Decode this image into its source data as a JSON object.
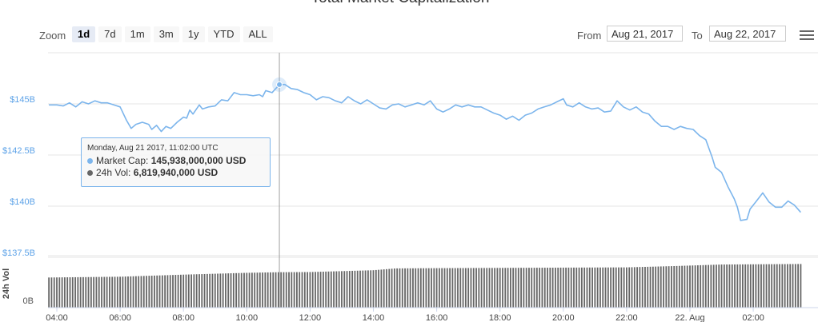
{
  "header": {
    "title": "Total Market Capitalization",
    "zoom_label": "Zoom",
    "zoom_buttons": [
      "1d",
      "7d",
      "1m",
      "3m",
      "1y",
      "YTD",
      "ALL"
    ],
    "active_zoom": "1d",
    "from_label": "From",
    "from_value": "Aug 21, 2017",
    "to_label": "To",
    "to_value": "Aug 22, 2017"
  },
  "tooltip": {
    "date": "Monday, Aug 21 2017, 11:02:00 UTC",
    "market_cap_label": "Market Cap:",
    "market_cap_value": "145,938,000,000 USD",
    "vol_label": "24h Vol:",
    "vol_value": "6,819,940,000 USD"
  },
  "chart_data": {
    "type": "line",
    "title": "Total Market Capitalization",
    "colors": {
      "market_cap": "#7cb5ec",
      "volume": "#666666",
      "crosshair": "#888888"
    },
    "x_tick_labels": [
      "04:00",
      "06:00",
      "08:00",
      "10:00",
      "12:00",
      "14:00",
      "16:00",
      "18:00",
      "20:00",
      "22:00",
      "22. Aug",
      "02:00"
    ],
    "x_tick_hours": [
      4,
      6,
      8,
      10,
      12,
      14,
      16,
      18,
      20,
      22,
      24,
      26
    ],
    "y_tick_labels": [
      "$137.5B",
      "$140B",
      "$142.5B",
      "$145B"
    ],
    "y_tick_values": [
      137.5,
      140,
      142.5,
      145
    ],
    "ylim": [
      137.5,
      147.5
    ],
    "volume_axis_label": "24h Vol",
    "volume_tick_label": "0B",
    "crosshair_hour": 11.03,
    "series": [
      {
        "name": "Market Cap",
        "unit": "B USD",
        "points": [
          [
            3.75,
            144.95
          ],
          [
            4.0,
            144.95
          ],
          [
            4.2,
            144.9
          ],
          [
            4.4,
            145.05
          ],
          [
            4.6,
            144.85
          ],
          [
            4.8,
            145.1
          ],
          [
            5.0,
            145.0
          ],
          [
            5.2,
            145.15
          ],
          [
            5.4,
            145.05
          ],
          [
            5.6,
            145.05
          ],
          [
            5.8,
            144.95
          ],
          [
            6.0,
            144.85
          ],
          [
            6.2,
            144.2
          ],
          [
            6.35,
            143.8
          ],
          [
            6.5,
            144.0
          ],
          [
            6.7,
            144.1
          ],
          [
            6.9,
            144.0
          ],
          [
            7.0,
            143.75
          ],
          [
            7.15,
            143.95
          ],
          [
            7.3,
            143.65
          ],
          [
            7.45,
            143.9
          ],
          [
            7.6,
            143.8
          ],
          [
            7.8,
            144.1
          ],
          [
            8.0,
            144.35
          ],
          [
            8.1,
            144.3
          ],
          [
            8.2,
            144.7
          ],
          [
            8.3,
            144.5
          ],
          [
            8.5,
            144.95
          ],
          [
            8.6,
            144.75
          ],
          [
            8.8,
            144.85
          ],
          [
            9.0,
            144.9
          ],
          [
            9.2,
            145.2
          ],
          [
            9.4,
            145.15
          ],
          [
            9.6,
            145.55
          ],
          [
            9.8,
            145.45
          ],
          [
            10.0,
            145.45
          ],
          [
            10.2,
            145.4
          ],
          [
            10.4,
            145.45
          ],
          [
            10.5,
            145.35
          ],
          [
            10.6,
            145.65
          ],
          [
            10.8,
            145.55
          ],
          [
            11.03,
            145.94
          ],
          [
            11.2,
            145.95
          ],
          [
            11.4,
            145.75
          ],
          [
            11.6,
            145.7
          ],
          [
            11.8,
            145.55
          ],
          [
            12.0,
            145.45
          ],
          [
            12.2,
            145.2
          ],
          [
            12.4,
            145.35
          ],
          [
            12.6,
            145.3
          ],
          [
            12.8,
            145.15
          ],
          [
            13.0,
            145.05
          ],
          [
            13.2,
            145.35
          ],
          [
            13.4,
            145.15
          ],
          [
            13.6,
            145.0
          ],
          [
            13.8,
            145.2
          ],
          [
            14.0,
            145.0
          ],
          [
            14.2,
            144.8
          ],
          [
            14.4,
            144.75
          ],
          [
            14.6,
            144.95
          ],
          [
            14.8,
            145.0
          ],
          [
            15.0,
            144.85
          ],
          [
            15.2,
            144.95
          ],
          [
            15.4,
            145.05
          ],
          [
            15.6,
            144.95
          ],
          [
            15.8,
            145.15
          ],
          [
            16.0,
            144.75
          ],
          [
            16.2,
            144.6
          ],
          [
            16.4,
            144.75
          ],
          [
            16.6,
            144.95
          ],
          [
            16.8,
            144.85
          ],
          [
            17.0,
            144.95
          ],
          [
            17.2,
            144.85
          ],
          [
            17.4,
            144.85
          ],
          [
            17.6,
            144.7
          ],
          [
            17.8,
            144.55
          ],
          [
            18.0,
            144.45
          ],
          [
            18.2,
            144.25
          ],
          [
            18.4,
            144.4
          ],
          [
            18.6,
            144.2
          ],
          [
            18.8,
            144.45
          ],
          [
            19.0,
            144.55
          ],
          [
            19.2,
            144.75
          ],
          [
            19.4,
            144.85
          ],
          [
            19.6,
            144.95
          ],
          [
            19.8,
            145.1
          ],
          [
            20.0,
            145.25
          ],
          [
            20.1,
            144.95
          ],
          [
            20.3,
            144.85
          ],
          [
            20.5,
            145.05
          ],
          [
            20.7,
            144.85
          ],
          [
            20.9,
            144.75
          ],
          [
            21.1,
            144.8
          ],
          [
            21.3,
            144.6
          ],
          [
            21.5,
            144.65
          ],
          [
            21.7,
            145.15
          ],
          [
            21.9,
            144.85
          ],
          [
            22.1,
            144.7
          ],
          [
            22.3,
            144.85
          ],
          [
            22.5,
            144.6
          ],
          [
            22.7,
            144.5
          ],
          [
            22.9,
            144.15
          ],
          [
            23.1,
            143.9
          ],
          [
            23.3,
            143.9
          ],
          [
            23.5,
            143.75
          ],
          [
            23.7,
            143.9
          ],
          [
            23.9,
            143.8
          ],
          [
            24.1,
            143.75
          ],
          [
            24.3,
            143.45
          ],
          [
            24.5,
            143.25
          ],
          [
            24.7,
            142.4
          ],
          [
            24.8,
            141.9
          ],
          [
            25.0,
            141.65
          ],
          [
            25.2,
            140.95
          ],
          [
            25.4,
            140.35
          ],
          [
            25.5,
            139.95
          ],
          [
            25.6,
            139.3
          ],
          [
            25.8,
            139.35
          ],
          [
            25.9,
            139.85
          ],
          [
            26.1,
            140.25
          ],
          [
            26.3,
            140.65
          ],
          [
            26.5,
            140.2
          ],
          [
            26.7,
            139.95
          ],
          [
            26.9,
            139.95
          ],
          [
            27.1,
            140.25
          ],
          [
            27.3,
            140.05
          ],
          [
            27.5,
            139.7
          ]
        ]
      },
      {
        "name": "24h Vol",
        "unit": "B USD",
        "ymax": 10.0,
        "points": [
          [
            3.75,
            5.8
          ],
          [
            6.0,
            5.95
          ],
          [
            8.0,
            6.35
          ],
          [
            10.0,
            6.7
          ],
          [
            11.03,
            6.82
          ],
          [
            12.0,
            6.85
          ],
          [
            14.0,
            7.2
          ],
          [
            14.7,
            7.55
          ],
          [
            16.0,
            7.6
          ],
          [
            18.0,
            7.65
          ],
          [
            20.0,
            7.7
          ],
          [
            22.0,
            7.75
          ],
          [
            23.5,
            8.0
          ],
          [
            25.0,
            8.3
          ],
          [
            27.5,
            8.4
          ]
        ]
      }
    ]
  }
}
